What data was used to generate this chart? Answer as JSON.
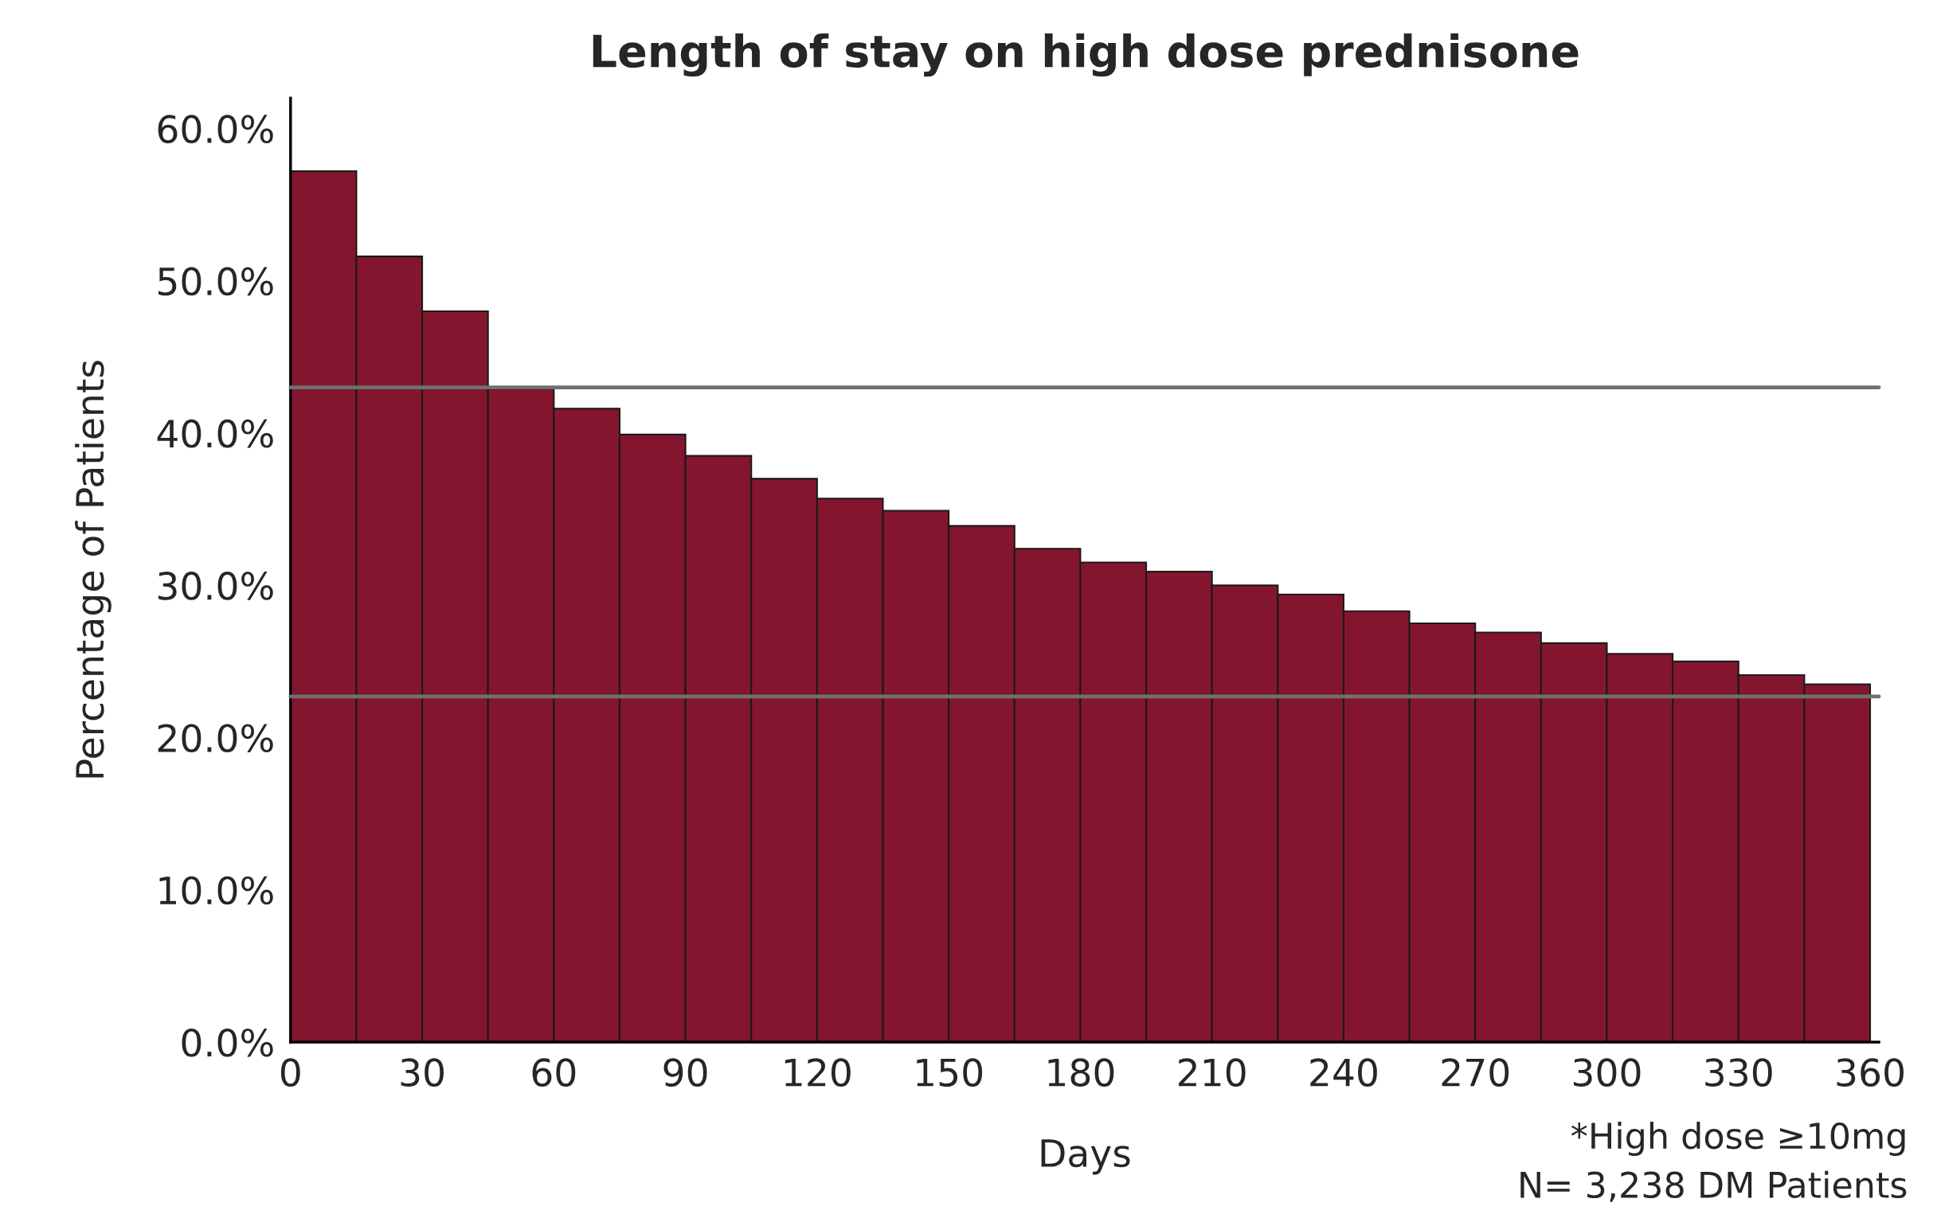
{
  "chart_data": {
    "type": "histogram",
    "title": "Length of stay on high dose prednisone",
    "xlabel": "Days",
    "ylabel": "Percentage of Patients",
    "bins": [
      0,
      15,
      30,
      45,
      60,
      75,
      90,
      105,
      120,
      135,
      150,
      165,
      180,
      195,
      210,
      225,
      240,
      255,
      270,
      285,
      300,
      315,
      330,
      345,
      360
    ],
    "values": [
      57.2,
      51.6,
      48.0,
      42.9,
      41.6,
      39.9,
      38.5,
      37.0,
      35.7,
      34.9,
      33.9,
      32.4,
      31.5,
      30.9,
      30.0,
      29.4,
      28.3,
      27.5,
      26.9,
      26.2,
      25.5,
      25.0,
      24.1,
      23.5
    ],
    "color": "#83162e",
    "xlim": [
      0,
      362
    ],
    "ylim": [
      0,
      62
    ],
    "xticks": [
      0,
      30,
      60,
      90,
      120,
      150,
      180,
      210,
      240,
      270,
      300,
      330,
      360
    ],
    "yticks": [
      {
        "value": 0,
        "label": "0.0%"
      },
      {
        "value": 10,
        "label": "10.0%"
      },
      {
        "value": 20,
        "label": "20.0%"
      },
      {
        "value": 30,
        "label": "30.0%"
      },
      {
        "value": 40,
        "label": "40.0%"
      },
      {
        "value": 50,
        "label": "50.0%"
      },
      {
        "value": 60,
        "label": "60.0%"
      }
    ],
    "ref_lines": [
      {
        "axis": "y",
        "value": 43.0,
        "color": "#707070"
      },
      {
        "axis": "y",
        "value": 22.7,
        "color": "#707070"
      }
    ],
    "annotations": [
      "*High dose ≥10mg",
      "N= 3,238 DM Patients"
    ]
  }
}
